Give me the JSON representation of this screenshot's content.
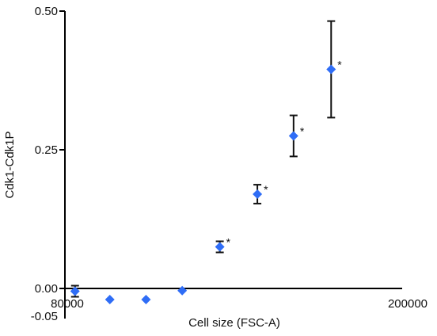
{
  "chart_data": {
    "type": "scatter",
    "title": "",
    "xlabel": "Cell size (FSC-A)",
    "ylabel": "Cdk1-Cdk1P",
    "xlim": [
      80000,
      200000
    ],
    "ylim": [
      -0.05,
      0.5
    ],
    "x_ticks": [
      "80000",
      "200000"
    ],
    "y_ticks": [
      "0.50",
      "0.25",
      "0.00",
      "-0.05"
    ],
    "y_tick_values": [
      0.5,
      0.25,
      0.0,
      -0.05
    ],
    "grid": false,
    "marker_color": "#2f6df6",
    "series": [
      {
        "points": [
          {
            "x": 80500,
            "y": -0.005,
            "err": 0.01,
            "star": ""
          },
          {
            "x": 93000,
            "y": -0.02,
            "err": 0,
            "star": ""
          },
          {
            "x": 106000,
            "y": -0.02,
            "err": 0,
            "star": ""
          },
          {
            "x": 119000,
            "y": -0.004,
            "err": 0,
            "star": ""
          },
          {
            "x": 132500,
            "y": 0.075,
            "err": 0.01,
            "star": "*"
          },
          {
            "x": 146000,
            "y": 0.17,
            "err": 0.017,
            "star": "*"
          },
          {
            "x": 159000,
            "y": 0.275,
            "err": 0.037,
            "star": "*"
          },
          {
            "x": 172500,
            "y": 0.395,
            "err": 0.087,
            "star": "*"
          }
        ]
      }
    ]
  }
}
